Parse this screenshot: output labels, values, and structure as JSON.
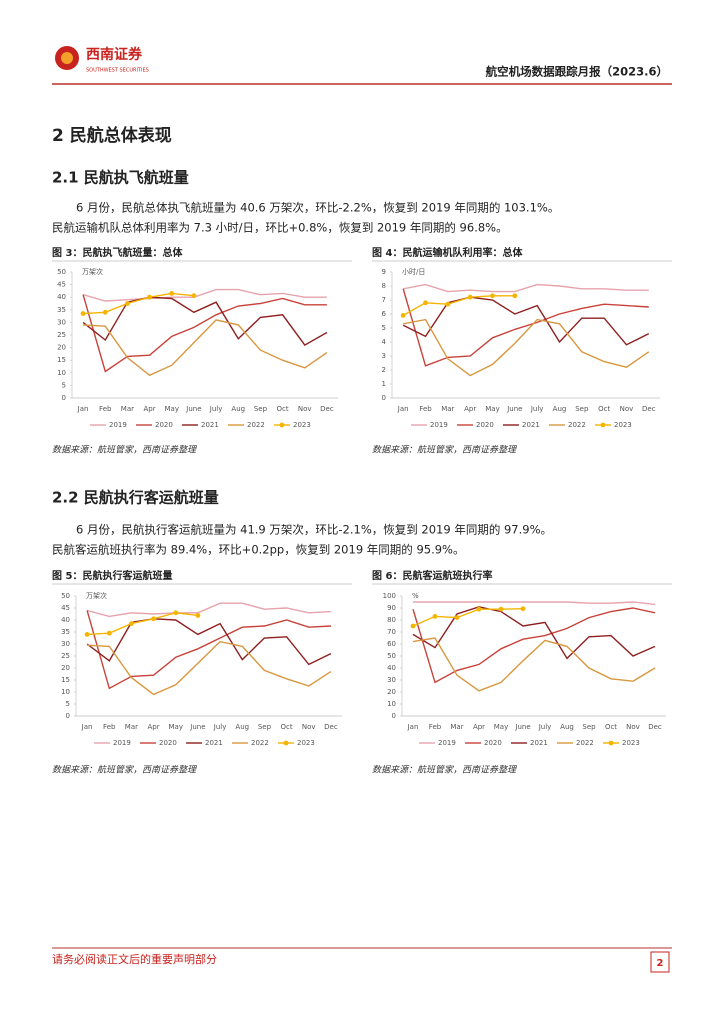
{
  "header": {
    "brand": "西南证券",
    "brand_en": "SOUTHWEST SECURITIES",
    "report_title": "航空机场数据跟踪月报（2023.6）"
  },
  "section": {
    "title": "2 民航总体表现",
    "subsections": [
      {
        "title": "2.1 民航执飞航班量",
        "paragraphs": [
          "6 月份，民航总体执飞航班量为 40.6 万架次，环比-2.2%，恢复到 2019 年同期的 103.1%。",
          "民航运输机队总体利用率为 7.3 小时/日，环比+0.8%，恢复到 2019 年同期的 96.8%。"
        ]
      },
      {
        "title": "2.2 民航执行客运航班量",
        "paragraphs": [
          "6 月份，民航执行客运航班量为 41.9 万架次，环比-2.1%，恢复到 2019 年同期的 97.9%。",
          "民航客运航班执行率为 89.4%，环比+0.2pp，恢复到 2019 年同期的 95.9%。"
        ]
      }
    ]
  },
  "chart_data": [
    {
      "type": "line",
      "title": "图 3：民航执飞航班量：总体",
      "unit": "万架次",
      "source": "数据来源：航班管家，西南证券整理",
      "categories": [
        "Jan",
        "Feb",
        "Mar",
        "Apr",
        "May",
        "June",
        "July",
        "Aug",
        "Sep",
        "Oct",
        "Nov",
        "Dec"
      ],
      "ylim": [
        0,
        50
      ],
      "yticks": [
        0,
        5,
        10,
        15,
        20,
        25,
        30,
        35,
        40,
        45,
        50
      ],
      "legend": "bottom",
      "series": [
        {
          "name": "2019",
          "color": "#e6a3ad",
          "values": [
            41,
            38.5,
            39,
            39.5,
            40,
            40,
            43,
            43,
            41,
            41.5,
            40,
            40
          ]
        },
        {
          "name": "2020",
          "color": "#c8423a",
          "values": [
            41,
            10.5,
            16.5,
            17,
            24.5,
            28,
            33,
            36.5,
            37.5,
            39.5,
            37,
            37
          ]
        },
        {
          "name": "2021",
          "color": "#8e1f1f",
          "values": [
            30,
            23,
            38,
            40,
            39.5,
            34,
            38,
            23.5,
            32,
            33,
            21,
            26
          ]
        },
        {
          "name": "2022",
          "color": "#d9973f",
          "values": [
            29,
            28.5,
            16,
            9,
            13,
            22,
            31,
            29,
            19,
            15,
            12,
            18
          ]
        },
        {
          "name": "2023",
          "color": "#f5b400",
          "markers": true,
          "values": [
            33.5,
            34,
            37.5,
            40,
            41.5,
            40.6,
            null,
            null,
            null,
            null,
            null,
            null
          ]
        }
      ]
    },
    {
      "type": "line",
      "title": "图 4：民航运输机队利用率：总体",
      "unit": "小时/日",
      "source": "数据来源：航班管家，西南证券整理",
      "categories": [
        "Jan",
        "Feb",
        "Mar",
        "Apr",
        "May",
        "June",
        "July",
        "Aug",
        "Sep",
        "Oct",
        "Nov",
        "Dec"
      ],
      "ylim": [
        0,
        9
      ],
      "yticks": [
        0,
        1,
        2,
        3,
        4,
        5,
        6,
        7,
        8,
        9
      ],
      "legend": "bottom",
      "series": [
        {
          "name": "2019",
          "color": "#e6a3ad",
          "values": [
            7.8,
            8.1,
            7.6,
            7.7,
            7.6,
            7.6,
            8.1,
            8.0,
            7.8,
            7.8,
            7.7,
            7.7
          ]
        },
        {
          "name": "2020",
          "color": "#c8423a",
          "values": [
            7.8,
            2.3,
            2.9,
            3.0,
            4.3,
            4.9,
            5.4,
            6.0,
            6.4,
            6.7,
            6.6,
            6.5
          ]
        },
        {
          "name": "2021",
          "color": "#8e1f1f",
          "values": [
            5.2,
            4.4,
            6.8,
            7.2,
            7.0,
            6.0,
            6.6,
            4.0,
            5.7,
            5.7,
            3.8,
            4.6
          ]
        },
        {
          "name": "2022",
          "color": "#d9973f",
          "values": [
            5.3,
            5.6,
            2.8,
            1.6,
            2.4,
            3.9,
            5.6,
            5.3,
            3.3,
            2.6,
            2.2,
            3.3
          ]
        },
        {
          "name": "2023",
          "color": "#f5b400",
          "markers": true,
          "values": [
            5.9,
            6.8,
            6.7,
            7.2,
            7.3,
            7.3,
            null,
            null,
            null,
            null,
            null,
            null
          ]
        }
      ]
    },
    {
      "type": "line",
      "title": "图 5：民航执行客运航班量",
      "unit": "万架次",
      "source": "数据来源：航班管家，西南证券整理",
      "categories": [
        "Jan",
        "Feb",
        "Mar",
        "Apr",
        "May",
        "June",
        "July",
        "Aug",
        "Sep",
        "Oct",
        "Nov",
        "Dec"
      ],
      "ylim": [
        0,
        50
      ],
      "yticks": [
        0,
        5,
        10,
        15,
        20,
        25,
        30,
        35,
        40,
        45,
        50
      ],
      "legend": "bottom",
      "series": [
        {
          "name": "2019",
          "color": "#e6a3ad",
          "values": [
            44,
            41.5,
            43,
            42.5,
            43,
            43,
            47,
            47,
            44.5,
            45,
            43,
            43.5
          ]
        },
        {
          "name": "2020",
          "color": "#c8423a",
          "values": [
            44,
            11.5,
            16.5,
            17,
            24.5,
            28,
            32.5,
            37,
            37.5,
            40,
            37,
            37.5
          ]
        },
        {
          "name": "2021",
          "color": "#8e1f1f",
          "values": [
            30,
            23,
            39,
            40.5,
            40,
            34,
            38.5,
            23.5,
            32.5,
            33,
            21.5,
            26
          ]
        },
        {
          "name": "2022",
          "color": "#d9973f",
          "values": [
            29.5,
            29,
            16,
            9,
            13,
            22,
            31,
            29,
            19,
            15.5,
            12.5,
            18.5
          ]
        },
        {
          "name": "2023",
          "color": "#f5b400",
          "markers": true,
          "values": [
            34,
            34.5,
            38.5,
            40.5,
            43,
            41.9,
            null,
            null,
            null,
            null,
            null,
            null
          ]
        }
      ]
    },
    {
      "type": "line",
      "title": "图 6：民航客运航班执行率",
      "unit": "%",
      "source": "数据来源：航班管家，西南证券整理",
      "categories": [
        "Jan",
        "Feb",
        "Mar",
        "Apr",
        "May",
        "June",
        "July",
        "Aug",
        "Sep",
        "Oct",
        "Nov",
        "Dec"
      ],
      "ylim": [
        0,
        100
      ],
      "yticks": [
        0,
        10,
        20,
        30,
        40,
        50,
        60,
        70,
        80,
        90,
        100
      ],
      "legend": "bottom",
      "series": [
        {
          "name": "2019",
          "color": "#e6a3ad",
          "values": [
            95,
            95,
            95,
            95,
            95,
            95,
            95,
            95,
            94,
            94,
            95,
            93
          ]
        },
        {
          "name": "2020",
          "color": "#c8423a",
          "values": [
            89,
            28,
            38,
            43,
            56,
            64,
            67,
            73,
            82,
            87,
            90,
            86
          ]
        },
        {
          "name": "2021",
          "color": "#8e1f1f",
          "values": [
            68,
            57,
            85,
            91,
            87,
            75,
            78,
            48,
            66,
            67,
            50,
            58
          ]
        },
        {
          "name": "2022",
          "color": "#d9973f",
          "values": [
            62,
            65,
            34,
            21,
            28,
            46,
            63,
            58,
            40,
            31,
            29,
            40
          ]
        },
        {
          "name": "2023",
          "color": "#f5b400",
          "markers": true,
          "values": [
            75,
            83,
            82,
            89,
            89,
            89.4,
            null,
            null,
            null,
            null,
            null,
            null
          ]
        }
      ]
    }
  ],
  "footer": {
    "disclaimer": "请务必阅读正文后的重要声明部分",
    "page": "2"
  }
}
